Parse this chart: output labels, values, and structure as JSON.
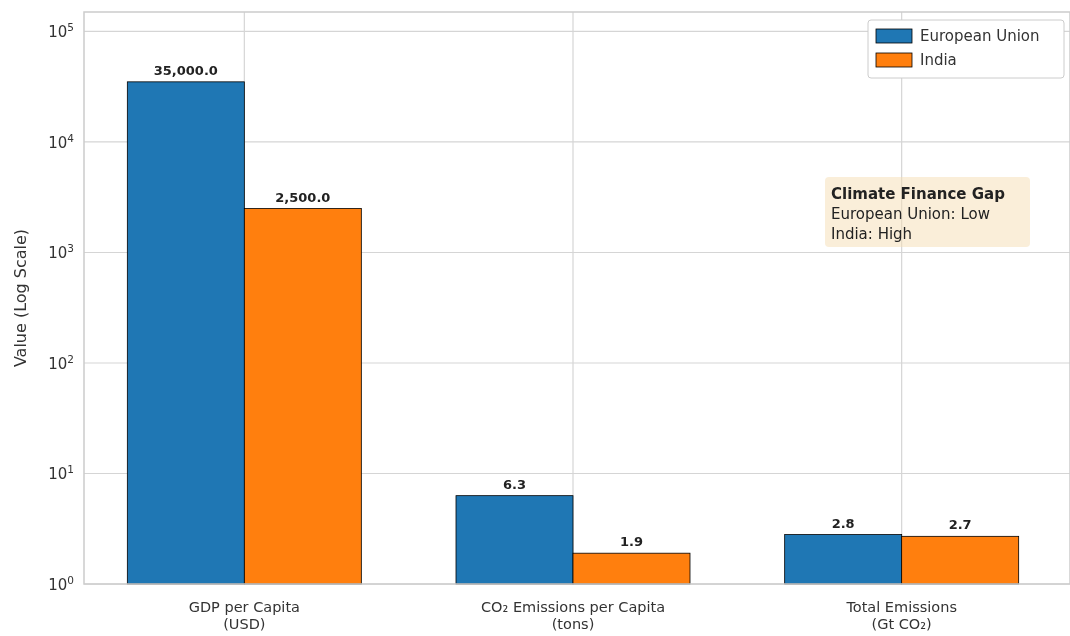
{
  "chart_data": {
    "type": "bar",
    "ylabel": "Value (Log Scale)",
    "categories": [
      "GDP per Capita\n(USD)",
      "CO₂ Emissions per Capita\n(tons)",
      "Total Emissions\n(Gt CO₂)"
    ],
    "series": [
      {
        "name": "European Union",
        "color": "#1f77b4",
        "values": [
          35000,
          6.3,
          2.8
        ],
        "value_labels": [
          "35,000.0",
          "6.3",
          "2.8"
        ]
      },
      {
        "name": "India",
        "color": "#ff7f0e",
        "values": [
          2500,
          1.9,
          2.7
        ],
        "value_labels": [
          "2,500.0",
          "1.9",
          "2.7"
        ]
      }
    ],
    "log": true,
    "ylim": [
      1,
      150000
    ],
    "yticks": [
      {
        "value": 1,
        "label": "10$^{0}$"
      },
      {
        "value": 10,
        "label": "10$^{1}$"
      },
      {
        "value": 100,
        "label": "10$^{2}$"
      },
      {
        "value": 1000,
        "label": "10$^{3}$"
      },
      {
        "value": 10000,
        "label": "10$^{4}$"
      },
      {
        "value": 100000,
        "label": "10$^{5}$"
      }
    ],
    "grid": true,
    "legend": "top right",
    "annotations": [
      "Climate Finance Gap",
      "European Union: Low",
      "India: High"
    ]
  }
}
